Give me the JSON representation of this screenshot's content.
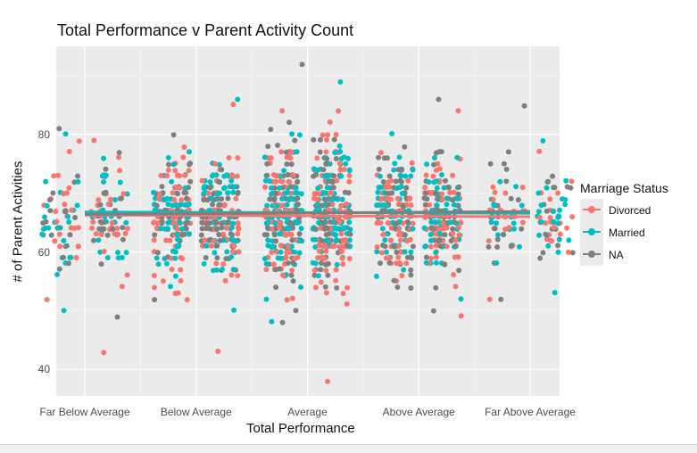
{
  "chart_data": {
    "type": "scatter",
    "title": "Total Performance v Parent Activity Count",
    "xlabel": "Total Performance",
    "ylabel": "# of Parent Activities",
    "categories": [
      "Far Below Average",
      "Below Average",
      "Average",
      "Above Average",
      "Far Above Average"
    ],
    "yticks": [
      40,
      60,
      80
    ],
    "ylim": [
      35.5,
      95
    ],
    "grid": true,
    "jitter": true,
    "legend": {
      "title": "Marriage Status",
      "position": "right",
      "entries": [
        "Divorced",
        "Married",
        "NA"
      ]
    },
    "series": [
      {
        "name": "Divorced",
        "color": "#F8766D",
        "trend": [
          66.3,
          66.0
        ],
        "groups": [
          {
            "category": "Far Below Average",
            "count": 55,
            "range": [
              43,
              79
            ],
            "mean": 66
          },
          {
            "category": "Below Average",
            "count": 130,
            "range": [
              43,
              85
            ],
            "mean": 66
          },
          {
            "category": "Average",
            "count": 180,
            "range": [
              38,
              84
            ],
            "mean": 66
          },
          {
            "category": "Above Average",
            "count": 130,
            "range": [
              49,
              84
            ],
            "mean": 66
          },
          {
            "category": "Far Above Average",
            "count": 40,
            "range": [
              52,
              77
            ],
            "mean": 66
          }
        ]
      },
      {
        "name": "Married",
        "color": "#00BFC4",
        "trend": [
          66.8,
          66.6
        ],
        "groups": [
          {
            "category": "Far Below Average",
            "count": 50,
            "range": [
              50,
              80
            ],
            "mean": 66
          },
          {
            "category": "Below Average",
            "count": 140,
            "range": [
              50,
              86
            ],
            "mean": 66
          },
          {
            "category": "Average",
            "count": 200,
            "range": [
              48,
              89
            ],
            "mean": 66
          },
          {
            "category": "Above Average",
            "count": 140,
            "range": [
              52,
              80
            ],
            "mean": 66
          },
          {
            "category": "Far Above Average",
            "count": 45,
            "range": [
              53,
              79
            ],
            "mean": 66
          }
        ]
      },
      {
        "name": "NA",
        "color": "#7F7F7F",
        "trend": [
          66.4,
          66.9
        ],
        "groups": [
          {
            "category": "Far Below Average",
            "count": 45,
            "range": [
              49,
              81
            ],
            "mean": 66
          },
          {
            "category": "Below Average",
            "count": 120,
            "range": [
              52,
              80
            ],
            "mean": 66
          },
          {
            "category": "Average",
            "count": 170,
            "range": [
              48,
              92
            ],
            "mean": 66
          },
          {
            "category": "Above Average",
            "count": 120,
            "range": [
              50,
              86
            ],
            "mean": 66
          },
          {
            "category": "Far Above Average",
            "count": 40,
            "range": [
              52,
              85
            ],
            "mean": 66
          }
        ]
      }
    ]
  }
}
